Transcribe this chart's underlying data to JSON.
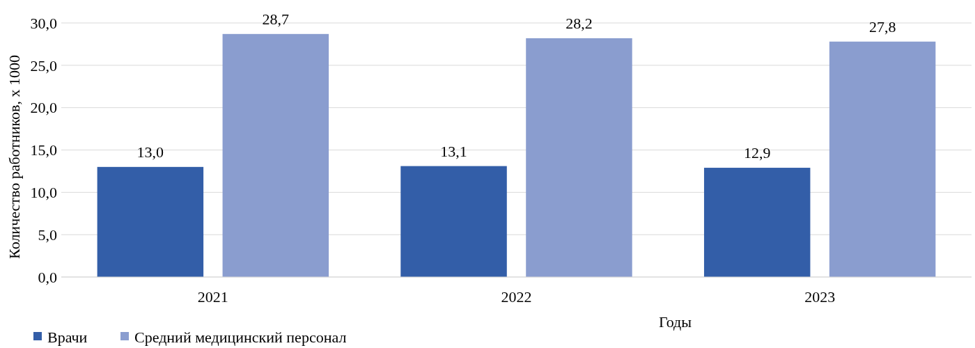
{
  "chart_data": {
    "type": "bar",
    "xlabel": "Годы",
    "ylabel": "Количество работников, х 1000",
    "categories": [
      "2021",
      "2022",
      "2023"
    ],
    "series": [
      {
        "name": "Врачи",
        "color": "#335ea8",
        "values": [
          13.0,
          13.1,
          12.9
        ],
        "value_labels": [
          "13,0",
          "13,1",
          "12,9"
        ]
      },
      {
        "name": "Средний медицинский персонал",
        "color": "#8a9dcf",
        "values": [
          28.7,
          28.2,
          27.8
        ],
        "value_labels": [
          "28,7",
          "28,2",
          "27,8"
        ]
      }
    ],
    "ylim": [
      0,
      30
    ],
    "yticks": [
      {
        "value": 0,
        "label": "0,0"
      },
      {
        "value": 5,
        "label": "5,0"
      },
      {
        "value": 10,
        "label": "10,0"
      },
      {
        "value": 15,
        "label": "15,0"
      },
      {
        "value": 20,
        "label": "20,0"
      },
      {
        "value": 25,
        "label": "25,0"
      },
      {
        "value": 30,
        "label": "30,0"
      }
    ],
    "grid": "y",
    "legend": "bottom left"
  }
}
